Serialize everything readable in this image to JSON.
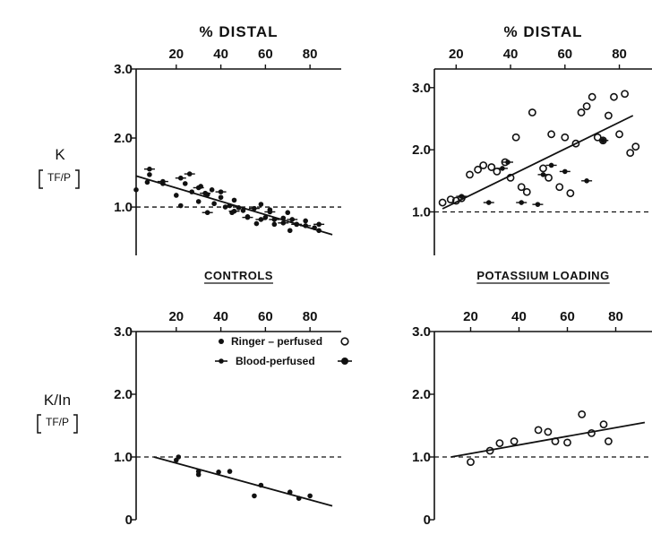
{
  "ylabel_top": {
    "main": "K",
    "sub": "TF/P"
  },
  "ylabel_bottom": {
    "main": "K/In",
    "sub": "TF/P"
  },
  "legend": {
    "ringer": "Ringer – perfused",
    "blood": "Blood-perfused"
  },
  "chart_data": [
    {
      "type": "scatter",
      "panel": "top-left",
      "title": "% DISTAL",
      "caption": "",
      "xlabel": "% DISTAL",
      "ylabel": "K [TF/P]",
      "xlim": [
        2,
        94
      ],
      "ylim": [
        0.3,
        3.0
      ],
      "x_ticks": [
        20,
        40,
        60,
        80
      ],
      "y_ticks": [
        1.0,
        2.0,
        3.0
      ],
      "y_tick_labels": [
        "1.0",
        "2.0",
        "3.0"
      ],
      "reference_line": 1.0,
      "regression": {
        "x": [
          2,
          90
        ],
        "y": [
          1.45,
          0.6
        ]
      },
      "series": [
        {
          "marker": "ringer",
          "points": [
            [
              2,
              1.25
            ],
            [
              7,
              1.36
            ],
            [
              8,
              1.47
            ],
            [
              14,
              1.34
            ],
            [
              20,
              1.17
            ],
            [
              22,
              1.02
            ],
            [
              24,
              1.34
            ],
            [
              27,
              1.22
            ],
            [
              30,
              1.08
            ],
            [
              31,
              1.3
            ],
            [
              34,
              1.18
            ],
            [
              37,
              1.05
            ],
            [
              40,
              1.14
            ],
            [
              42,
              1.0
            ],
            [
              45,
              0.92
            ],
            [
              48,
              0.99
            ],
            [
              50,
              0.95
            ],
            [
              52,
              0.86
            ],
            [
              56,
              0.76
            ],
            [
              60,
              0.85
            ],
            [
              62,
              0.96
            ],
            [
              64,
              0.75
            ],
            [
              68,
              0.84
            ],
            [
              71,
              0.66
            ],
            [
              74,
              0.75
            ],
            [
              78,
              0.8
            ],
            [
              82,
              0.7
            ],
            [
              84,
              0.66
            ],
            [
              36,
              1.25
            ],
            [
              46,
              1.1
            ],
            [
              58,
              1.04
            ],
            [
              70,
              0.92
            ]
          ]
        },
        {
          "marker": "blood",
          "points": [
            [
              8,
              1.55
            ],
            [
              14,
              1.37
            ],
            [
              22,
              1.42
            ],
            [
              26,
              1.48
            ],
            [
              30,
              1.28
            ],
            [
              33,
              1.2
            ],
            [
              34,
              0.92
            ],
            [
              40,
              1.22
            ],
            [
              44,
              1.02
            ],
            [
              46,
              0.94
            ],
            [
              52,
              0.85
            ],
            [
              55,
              0.98
            ],
            [
              58,
              0.82
            ],
            [
              62,
              0.93
            ],
            [
              64,
              0.82
            ],
            [
              68,
              0.77
            ],
            [
              72,
              0.82
            ],
            [
              74,
              0.75
            ],
            [
              78,
              0.73
            ],
            [
              84,
              0.75
            ]
          ]
        }
      ]
    },
    {
      "type": "scatter",
      "panel": "top-right",
      "title": "% DISTAL",
      "caption": "",
      "xlabel": "% DISTAL",
      "ylabel": "",
      "xlim": [
        12,
        92
      ],
      "ylim": [
        0.3,
        3.3
      ],
      "x_ticks": [
        20,
        40,
        60,
        80
      ],
      "y_ticks": [
        1.0,
        2.0,
        3.0
      ],
      "y_tick_labels": [
        "1.0",
        "2.0",
        "3.0"
      ],
      "reference_line": 1.0,
      "regression": {
        "x": [
          15,
          85
        ],
        "y": [
          1.05,
          2.55
        ]
      },
      "series": [
        {
          "marker": "ringer-open",
          "points": [
            [
              15,
              1.15
            ],
            [
              18,
              1.2
            ],
            [
              20,
              1.18
            ],
            [
              22,
              1.22
            ],
            [
              25,
              1.6
            ],
            [
              28,
              1.68
            ],
            [
              30,
              1.75
            ],
            [
              33,
              1.72
            ],
            [
              35,
              1.65
            ],
            [
              38,
              1.8
            ],
            [
              40,
              1.55
            ],
            [
              42,
              2.2
            ],
            [
              44,
              1.4
            ],
            [
              46,
              1.32
            ],
            [
              48,
              2.6
            ],
            [
              52,
              1.7
            ],
            [
              54,
              1.55
            ],
            [
              55,
              2.25
            ],
            [
              58,
              1.4
            ],
            [
              60,
              2.2
            ],
            [
              62,
              1.3
            ],
            [
              64,
              2.1
            ],
            [
              66,
              2.6
            ],
            [
              68,
              2.7
            ],
            [
              70,
              2.85
            ],
            [
              72,
              2.2
            ],
            [
              74,
              2.15
            ],
            [
              76,
              2.55
            ],
            [
              78,
              2.85
            ],
            [
              80,
              2.25
            ],
            [
              82,
              2.9
            ],
            [
              84,
              1.95
            ],
            [
              86,
              2.05
            ]
          ]
        },
        {
          "marker": "blood",
          "points": [
            [
              22,
              1.25
            ],
            [
              32,
              1.15
            ],
            [
              37,
              1.7
            ],
            [
              39,
              1.8
            ],
            [
              44,
              1.15
            ],
            [
              50,
              1.12
            ],
            [
              52,
              1.6
            ],
            [
              55,
              1.75
            ],
            [
              60,
              1.65
            ],
            [
              68,
              1.5
            ],
            [
              74,
              2.15
            ]
          ]
        }
      ]
    },
    {
      "type": "scatter",
      "panel": "bottom-left",
      "title": "",
      "caption": "CONTROLS",
      "xlabel": "",
      "ylabel": "K/In [TF/P]",
      "xlim": [
        2,
        94
      ],
      "ylim": [
        0.0,
        3.0
      ],
      "x_ticks": [
        20,
        40,
        60,
        80
      ],
      "y_ticks": [
        0,
        1.0,
        2.0,
        3.0
      ],
      "y_tick_labels": [
        "0",
        "1.0",
        "2.0",
        "3.0"
      ],
      "reference_line": 1.0,
      "regression": {
        "x": [
          10,
          90
        ],
        "y": [
          1.0,
          0.22
        ]
      },
      "series": [
        {
          "marker": "ringer",
          "points": [
            [
              20,
              0.95
            ],
            [
              21,
              1.0
            ],
            [
              30,
              0.72
            ],
            [
              30,
              0.77
            ],
            [
              39,
              0.76
            ],
            [
              44,
              0.77
            ],
            [
              55,
              0.38
            ],
            [
              58,
              0.55
            ],
            [
              71,
              0.44
            ],
            [
              75,
              0.34
            ],
            [
              80,
              0.38
            ]
          ]
        }
      ]
    },
    {
      "type": "scatter",
      "panel": "bottom-right",
      "title": "",
      "caption": "POTASSIUM LOADING",
      "xlabel": "",
      "ylabel": "",
      "xlim": [
        5,
        95
      ],
      "ylim": [
        0.0,
        3.0
      ],
      "x_ticks": [
        20,
        40,
        60,
        80
      ],
      "y_ticks": [
        0,
        1.0,
        2.0,
        3.0
      ],
      "y_tick_labels": [
        "0",
        "1.0",
        "2.0",
        "3.0"
      ],
      "reference_line": 1.0,
      "regression": {
        "x": [
          12,
          92
        ],
        "y": [
          1.0,
          1.55
        ]
      },
      "series": [
        {
          "marker": "ringer-open",
          "points": [
            [
              20,
              0.92
            ],
            [
              28,
              1.1
            ],
            [
              32,
              1.22
            ],
            [
              38,
              1.25
            ],
            [
              48,
              1.43
            ],
            [
              52,
              1.4
            ],
            [
              55,
              1.25
            ],
            [
              60,
              1.23
            ],
            [
              66,
              1.68
            ],
            [
              70,
              1.38
            ],
            [
              75,
              1.52
            ],
            [
              77,
              1.25
            ]
          ]
        }
      ]
    }
  ]
}
